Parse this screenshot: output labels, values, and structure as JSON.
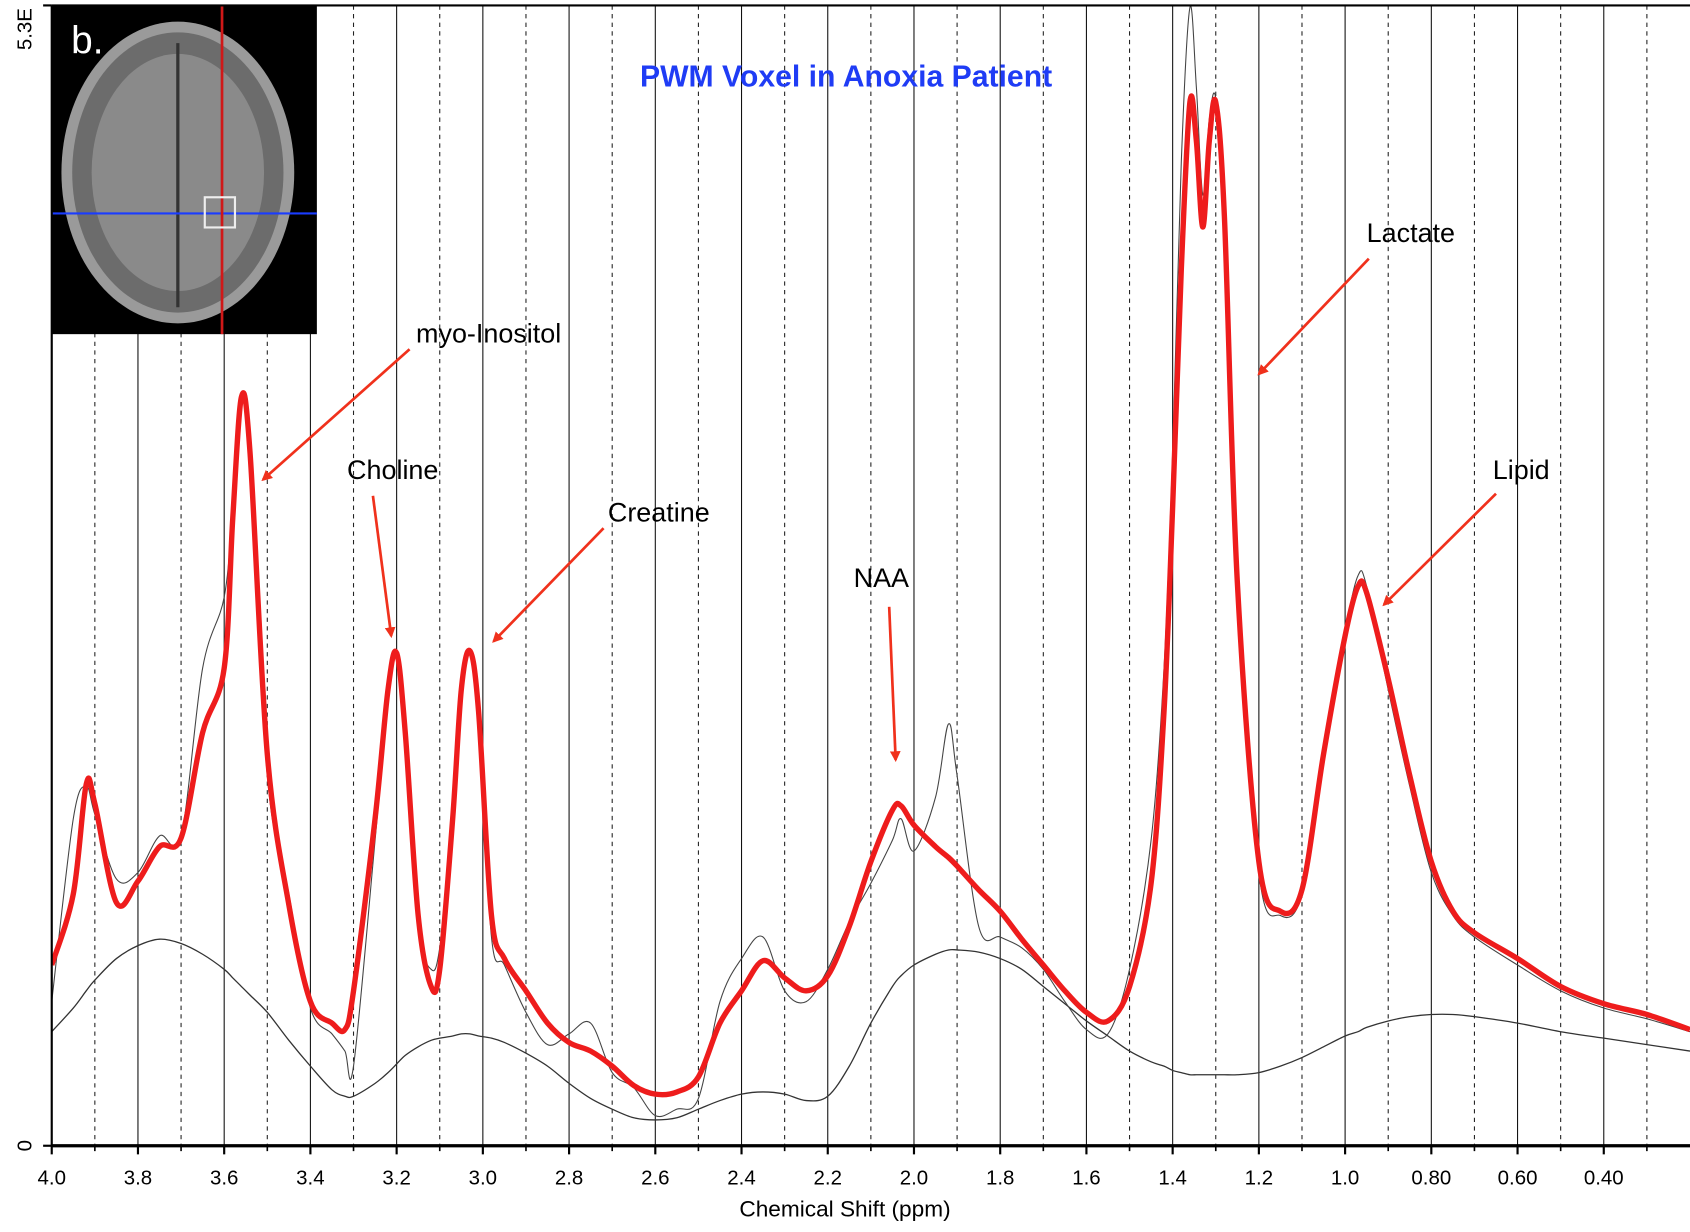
{
  "chart_data": {
    "type": "line",
    "title": "PWM Voxel in Anoxia Patient",
    "x_label": "Chemical Shift (ppm)",
    "inset_label": "b.",
    "annotations": [
      "myo-Inositol",
      "Choline",
      "Creatine",
      "NAA",
      "Lactate",
      "Lipid"
    ],
    "xlim": [
      4.0,
      0.2
    ],
    "ylim": [
      0,
      5.3
    ],
    "xticks": [
      {
        "value": 4,
        "label": "4.0"
      },
      3.8,
      3.6,
      3.4,
      3.2,
      {
        "value": 3,
        "label": "3.0"
      },
      2.8,
      2.6,
      2.4,
      2.2,
      {
        "value": 2,
        "label": "2.0"
      },
      1.8,
      1.6,
      1.4,
      1.2,
      {
        "value": 1,
        "label": "1.0"
      },
      {
        "value": 0.8,
        "label": "0.80"
      },
      {
        "value": 0.6,
        "label": "0.60"
      },
      {
        "value": 0.4,
        "label": "0.40"
      }
    ],
    "xminor": [
      3.9,
      3.7,
      3.5,
      3.3,
      3.1,
      2.9,
      2.7,
      2.5,
      2.3,
      2.1,
      1.9,
      1.7,
      1.5,
      1.3,
      1.1,
      0.9,
      0.7,
      0.5,
      0.3
    ],
    "yticks": [
      0,
      {
        "value": 5.3,
        "label": "5.3E"
      }
    ],
    "grid": true,
    "x": [
      4.0,
      3.95,
      3.92,
      3.9,
      3.85,
      3.8,
      3.75,
      3.7,
      3.65,
      3.6,
      3.58,
      3.56,
      3.54,
      3.5,
      3.45,
      3.4,
      3.35,
      3.32,
      3.3,
      3.25,
      3.22,
      3.2,
      3.18,
      3.15,
      3.12,
      3.1,
      3.07,
      3.05,
      3.03,
      3.01,
      2.98,
      2.95,
      2.9,
      2.85,
      2.8,
      2.75,
      2.7,
      2.65,
      2.6,
      2.55,
      2.5,
      2.45,
      2.4,
      2.35,
      2.3,
      2.25,
      2.2,
      2.15,
      2.1,
      2.05,
      2.03,
      2.0,
      1.95,
      1.92,
      1.9,
      1.85,
      1.8,
      1.75,
      1.7,
      1.65,
      1.6,
      1.55,
      1.5,
      1.45,
      1.42,
      1.4,
      1.38,
      1.36,
      1.345,
      1.33,
      1.315,
      1.3,
      1.28,
      1.25,
      1.2,
      1.15,
      1.1,
      1.05,
      1.0,
      0.97,
      0.95,
      0.9,
      0.85,
      0.8,
      0.75,
      0.7,
      0.6,
      0.5,
      0.4,
      0.3,
      0.2
    ],
    "series": [
      {
        "color": "#333333",
        "width": 1.2,
        "values": [
          0.53,
          0.64,
          0.72,
          0.77,
          0.87,
          0.93,
          0.96,
          0.94,
          0.89,
          0.82,
          0.78,
          0.74,
          0.7,
          0.62,
          0.49,
          0.37,
          0.26,
          0.23,
          0.23,
          0.29,
          0.34,
          0.38,
          0.42,
          0.46,
          0.49,
          0.5,
          0.51,
          0.52,
          0.52,
          0.51,
          0.5,
          0.48,
          0.43,
          0.37,
          0.29,
          0.22,
          0.17,
          0.13,
          0.12,
          0.13,
          0.17,
          0.21,
          0.24,
          0.25,
          0.24,
          0.21,
          0.23,
          0.37,
          0.57,
          0.74,
          0.79,
          0.84,
          0.89,
          0.91,
          0.91,
          0.9,
          0.87,
          0.82,
          0.74,
          0.66,
          0.58,
          0.51,
          0.44,
          0.39,
          0.37,
          0.35,
          0.34,
          0.33,
          0.33,
          0.33,
          0.33,
          0.33,
          0.33,
          0.33,
          0.34,
          0.37,
          0.41,
          0.46,
          0.51,
          0.53,
          0.55,
          0.58,
          0.6,
          0.61,
          0.61,
          0.6,
          0.57,
          0.53,
          0.5,
          0.47,
          0.44
        ]
      },
      {
        "color": "#444444",
        "width": 1,
        "values": [
          0.67,
          1.52,
          1.67,
          1.54,
          1.24,
          1.27,
          1.44,
          1.44,
          2.22,
          2.55,
          2.97,
          3.5,
          3.17,
          1.72,
          1.17,
          0.64,
          0.52,
          0.44,
          0.37,
          1.42,
          2.07,
          2.28,
          1.87,
          1.02,
          0.82,
          0.92,
          1.47,
          2.12,
          2.3,
          1.99,
          0.97,
          0.84,
          0.62,
          0.47,
          0.52,
          0.57,
          0.34,
          0.27,
          0.14,
          0.17,
          0.22,
          0.67,
          0.87,
          0.97,
          0.72,
          0.67,
          0.82,
          1.04,
          1.22,
          1.42,
          1.52,
          1.37,
          1.62,
          1.96,
          1.72,
          1.02,
          0.97,
          0.92,
          0.82,
          0.67,
          0.54,
          0.52,
          0.82,
          1.42,
          2.22,
          3.22,
          4.57,
          5.29,
          4.92,
          4.42,
          4.77,
          4.87,
          4.37,
          2.72,
          1.27,
          1.07,
          1.17,
          1.82,
          2.39,
          2.65,
          2.6,
          2.12,
          1.67,
          1.27,
          1.07,
          0.97,
          0.84,
          0.72,
          0.64,
          0.59,
          0.53
        ]
      },
      {
        "color": "#ee1c1c",
        "width": 5,
        "values": [
          0.84,
          1.17,
          1.68,
          1.59,
          1.13,
          1.23,
          1.39,
          1.43,
          1.92,
          2.22,
          2.92,
          3.48,
          3.22,
          1.82,
          1.12,
          0.67,
          0.57,
          0.54,
          0.72,
          1.52,
          2.12,
          2.29,
          1.92,
          1.07,
          0.74,
          0.82,
          1.52,
          2.12,
          2.3,
          2.02,
          1.07,
          0.87,
          0.72,
          0.57,
          0.48,
          0.44,
          0.37,
          0.28,
          0.24,
          0.25,
          0.32,
          0.57,
          0.72,
          0.86,
          0.78,
          0.72,
          0.79,
          1.02,
          1.32,
          1.56,
          1.58,
          1.49,
          1.39,
          1.34,
          1.3,
          1.19,
          1.09,
          0.96,
          0.84,
          0.72,
          0.62,
          0.58,
          0.74,
          1.22,
          2.02,
          2.97,
          4.07,
          4.85,
          4.67,
          4.27,
          4.67,
          4.85,
          4.32,
          2.62,
          1.32,
          1.09,
          1.19,
          1.82,
          2.37,
          2.6,
          2.57,
          2.17,
          1.72,
          1.32,
          1.09,
          0.99,
          0.87,
          0.74,
          0.66,
          0.61,
          0.54
        ]
      }
    ],
    "title_color": "#1f3cf5",
    "annotation_color": "#f0311c"
  }
}
